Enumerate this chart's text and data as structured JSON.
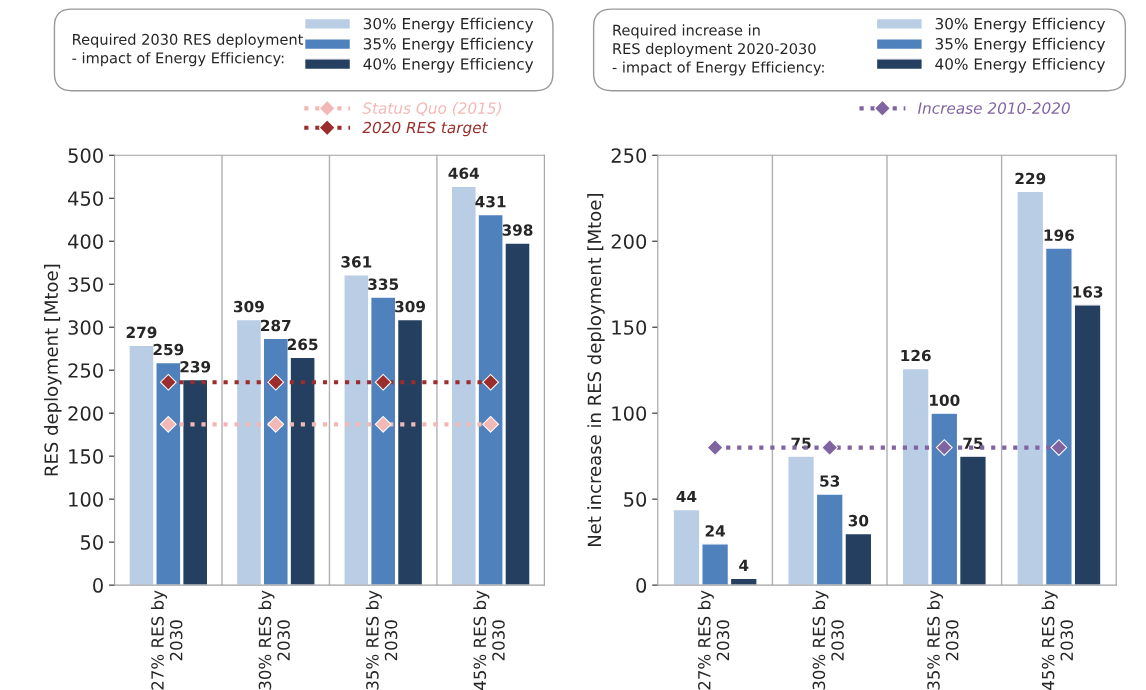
{
  "chart_data": [
    {
      "type": "bar",
      "legend_title": "Required 2030 RES deployment\n- impact of Energy Efficiency:",
      "ylabel": "RES deployment [Mtoe]",
      "categories": [
        "27% RES by\n2030",
        "30% RES by\n2030",
        "35% RES by\n2030",
        "45% RES by\n2030"
      ],
      "series": [
        {
          "name": "30% Energy Efficiency",
          "color": "#b9cde5",
          "values": [
            279,
            309,
            361,
            464
          ],
          "value_labels": [
            "279",
            "309",
            "361",
            "464"
          ]
        },
        {
          "name": "35% Energy Efficiency",
          "color": "#4f81bd",
          "values": [
            259,
            287,
            335,
            431
          ],
          "value_labels": [
            "259",
            "287",
            "335",
            "431"
          ]
        },
        {
          "name": "40% Energy Efficiency",
          "color": "#243f60",
          "values": [
            239,
            265,
            309,
            398
          ],
          "value_labels": [
            "239",
            "265",
            "309",
            "398"
          ]
        },
        {
          "type": "line",
          "name": "Status Quo (2015)",
          "color": "#f2b8b5",
          "marker": "diamond",
          "line_style": "dotted",
          "values": [
            187,
            187,
            187,
            187
          ]
        },
        {
          "type": "line",
          "name": "2020 RES target",
          "color": "#9b2d2d",
          "marker": "diamond",
          "line_style": "dotted",
          "values": [
            236,
            236,
            236,
            236
          ]
        }
      ],
      "ylim": [
        0,
        500
      ],
      "yticks": [
        0,
        50,
        100,
        150,
        200,
        250,
        300,
        350,
        400,
        450,
        500
      ],
      "grid": "x",
      "legend": "top"
    },
    {
      "type": "bar",
      "legend_title": "Required increase in\nRES deployment 2020-2030\n- impact of Energy Efficiency:",
      "ylabel": "Net increase in RES deployment [Mtoe]",
      "categories": [
        "27% RES by\n2030",
        "30% RES by\n2030",
        "35% RES by\n2030",
        "45% RES by\n2030"
      ],
      "series": [
        {
          "name": "30% Energy Efficiency",
          "color": "#b9cde5",
          "values": [
            44,
            75,
            126,
            229
          ],
          "value_labels": [
            "44",
            "75",
            "126",
            "229"
          ]
        },
        {
          "name": "35% Energy Efficiency",
          "color": "#4f81bd",
          "values": [
            24,
            53,
            100,
            196
          ],
          "value_labels": [
            "24",
            "53",
            "100",
            "196"
          ]
        },
        {
          "name": "40% Energy Efficiency",
          "color": "#243f60",
          "values": [
            4,
            30,
            75,
            163
          ],
          "value_labels": [
            "4",
            "30",
            "75",
            "163"
          ]
        },
        {
          "type": "line",
          "name": "Increase 2010-2020",
          "color": "#8064a2",
          "marker": "diamond",
          "line_style": "dotted",
          "values": [
            80,
            80,
            80,
            80
          ]
        }
      ],
      "ylim": [
        0,
        250
      ],
      "yticks": [
        0,
        50,
        100,
        150,
        200,
        250
      ],
      "grid": "x",
      "legend": "top"
    }
  ]
}
